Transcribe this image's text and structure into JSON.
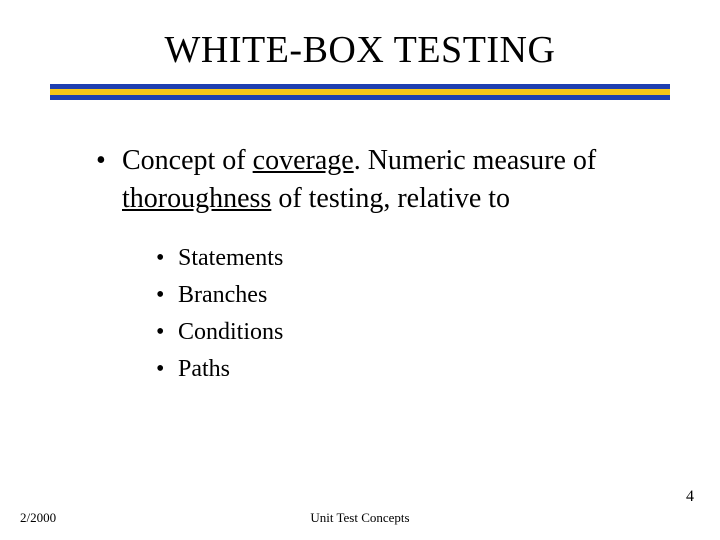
{
  "slide": {
    "title": "WHITE-BOX TESTING",
    "title_fontsize": 38,
    "rule_colors": {
      "blue": "#1f3fb0",
      "yellow": "#f6c518"
    },
    "background_color": "#ffffff",
    "text_color": "#000000",
    "main_bullet": {
      "pre": "Concept of ",
      "u1": "coverage",
      "mid": ". Numeric measure of ",
      "u2": "thoroughness",
      "post": " of testing, relative to",
      "fontsize": 28
    },
    "sub_bullets": {
      "fontsize": 24,
      "items": [
        "Statements",
        "Branches",
        "Conditions",
        "Paths"
      ]
    },
    "footer": {
      "date": "2/2000",
      "center": "Unit Test Concepts",
      "page": "4",
      "fontsize": 13
    }
  }
}
